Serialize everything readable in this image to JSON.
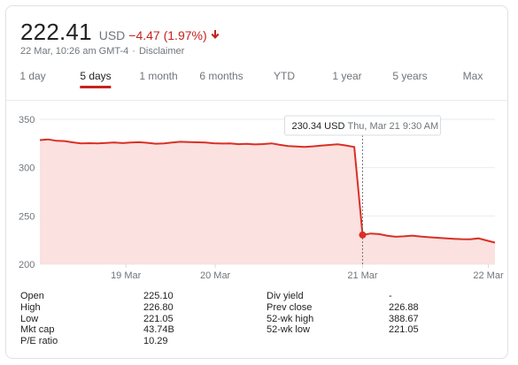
{
  "quote": {
    "price": "222.41",
    "currency": "USD",
    "change": "−4.47 (1.97%)",
    "timestamp": "22 Mar, 10:26 am GMT-4",
    "separator": "·",
    "disclaimer": "Disclaimer",
    "change_color": "#c5221f"
  },
  "tabs": [
    {
      "label": "1 day",
      "active": false
    },
    {
      "label": "5 days",
      "active": true
    },
    {
      "label": "1 month",
      "active": false
    },
    {
      "label": "6 months",
      "active": false
    },
    {
      "label": "YTD",
      "active": false
    },
    {
      "label": "1 year",
      "active": false
    },
    {
      "label": "5 years",
      "active": false
    },
    {
      "label": "Max",
      "active": false
    }
  ],
  "tooltip": {
    "price": "230.34 USD",
    "time": "Thu, Mar 21 9:30 AM"
  },
  "chart_data": {
    "type": "area",
    "y_ticks": [
      "350",
      "300",
      "250",
      "200"
    ],
    "ylim": [
      200,
      350
    ],
    "x_ticks": [
      "19 Mar",
      "20 Mar",
      "21 Mar",
      "22 Mar"
    ],
    "line_color": "#d93025",
    "fill_color": "#fbdedd",
    "grid": true,
    "series": [
      {
        "values": [
          328.5,
          329.2,
          327.8,
          327.5,
          326.1,
          325.0,
          325.3,
          325.1,
          325.6,
          326.0,
          325.4,
          325.9,
          326.3,
          325.7,
          324.8,
          325.1,
          326.0,
          326.8,
          326.5,
          326.2,
          325.9,
          325.2,
          324.9,
          325.0,
          324.3,
          324.6,
          324.0,
          324.4,
          325.1,
          323.6,
          322.4,
          321.8,
          321.5,
          322.0,
          322.8,
          323.5,
          324.1,
          322.9,
          321.4,
          230.34,
          231.8,
          231.2,
          229.5,
          228.4,
          228.9,
          229.6,
          228.7,
          228.0,
          227.4,
          226.9,
          226.3,
          226.0,
          225.9,
          226.8,
          224.6,
          222.41
        ]
      }
    ]
  },
  "stats": {
    "left": [
      {
        "label": "Open",
        "value": "225.10"
      },
      {
        "label": "High",
        "value": "226.80"
      },
      {
        "label": "Low",
        "value": "221.05"
      },
      {
        "label": "Mkt cap",
        "value": "43.74B"
      },
      {
        "label": "P/E ratio",
        "value": "10.29"
      }
    ],
    "right": [
      {
        "label": "Div yield",
        "value": "-"
      },
      {
        "label": "Prev close",
        "value": "226.88"
      },
      {
        "label": "52-wk high",
        "value": "388.67"
      },
      {
        "label": "52-wk low",
        "value": "221.05"
      }
    ]
  }
}
